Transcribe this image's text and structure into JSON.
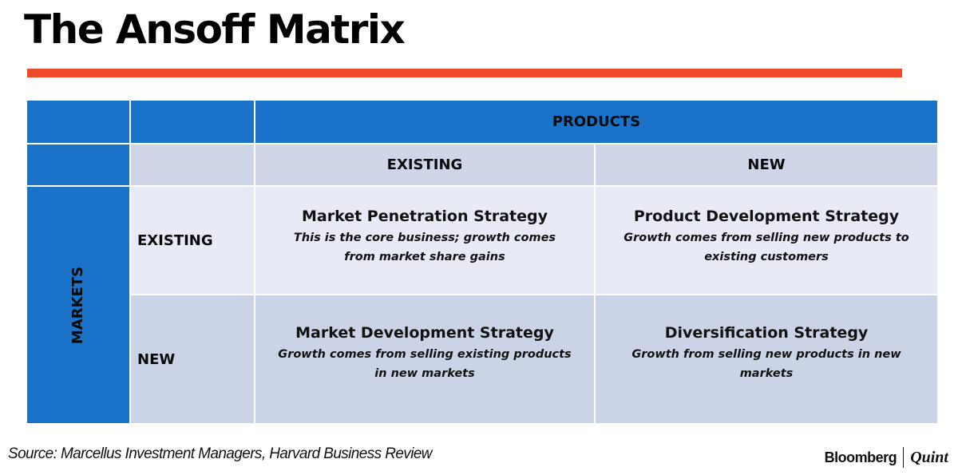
{
  "title": "The Ansoff Matrix",
  "colors": {
    "accent_rule": "#ee4a2a",
    "header_blue": "#1b72c9",
    "header_gray": "#cfd6e8",
    "cell_light": "#e8ebf5",
    "cell_dark": "#cbd3e6"
  },
  "matrix": {
    "products_label": "PRODUCTS",
    "markets_label": "MARKETS",
    "columns": [
      "EXISTING",
      "NEW"
    ],
    "rows": [
      "EXISTING",
      "NEW"
    ],
    "cells": [
      [
        {
          "title": "Market Penetration Strategy",
          "desc": "This is the core business; growth comes from market share gains"
        },
        {
          "title": "Product Development Strategy",
          "desc": "Growth comes from selling new products to existing customers"
        }
      ],
      [
        {
          "title": "Market Development Strategy",
          "desc": "Growth comes from selling existing products in new markets"
        },
        {
          "title": "Diversification Strategy",
          "desc": "Growth from selling new products in new markets"
        }
      ]
    ]
  },
  "source": "Source: Marcellus Investment Managers, Harvard Business Review",
  "brand": {
    "primary": "Bloomberg",
    "secondary": "Quint"
  }
}
